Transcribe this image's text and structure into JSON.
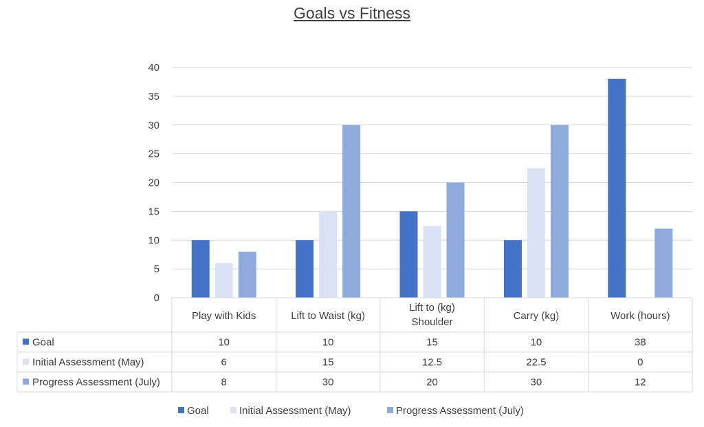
{
  "chart_data": {
    "type": "bar",
    "title": "Goals vs Fitness",
    "xlabel": "",
    "ylabel": "",
    "ylim": [
      0,
      40
    ],
    "yticks": [
      0,
      5,
      10,
      15,
      20,
      25,
      30,
      35,
      40
    ],
    "grid": true,
    "legend": "bottom",
    "data_table": true,
    "categories": [
      "Play with Kids",
      "Lift to Waist (kg)",
      "Lift to Shoulder (kg)",
      "Carry (kg)",
      "Work (hours)"
    ],
    "series": [
      {
        "name": "Goal",
        "color": "#4472C4",
        "values": [
          10,
          10,
          15,
          10,
          38
        ]
      },
      {
        "name": "Initial Assessment (May)",
        "color": "#DAE3F3",
        "values": [
          6,
          15,
          12.5,
          22.5,
          0
        ]
      },
      {
        "name": "Progress Assessment (July)",
        "color": "#8FAADC",
        "values": [
          8,
          30,
          20,
          30,
          12
        ]
      }
    ]
  }
}
